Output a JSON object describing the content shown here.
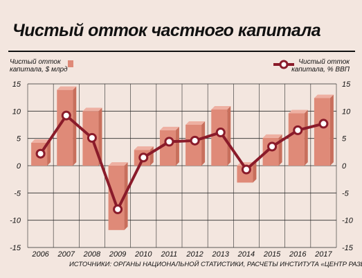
{
  "chart_data": {
    "type": "bar",
    "title": "Чистый отток частного капитала",
    "categories": [
      "2006",
      "2007",
      "2008",
      "2009",
      "2010",
      "2011",
      "2012",
      "2013",
      "2014",
      "2015",
      "2016",
      "2017"
    ],
    "series": [
      {
        "name": "Чистый отток капитала, $ млрд",
        "kind": "bar",
        "axis": "left",
        "color": "#df8a78",
        "values": [
          4.2,
          13.9,
          10.0,
          -11.8,
          2.9,
          6.5,
          7.5,
          10.3,
          -3.1,
          5.1,
          9.6,
          12.4
        ]
      },
      {
        "name": "Чистый отток капитала, % ВВП",
        "kind": "line",
        "axis": "right",
        "color": "#8a1b2a",
        "values": [
          2.2,
          9.2,
          5.1,
          -8.0,
          1.5,
          4.4,
          4.6,
          6.1,
          -0.7,
          3.5,
          6.5,
          7.7
        ]
      }
    ],
    "legend_left": {
      "line1": "Чистый отток",
      "line2": "капитала, $ млрд"
    },
    "legend_right": {
      "line1": "Чистый отток",
      "line2": "капитала, % ВВП"
    },
    "ylim": [
      -15,
      15
    ],
    "ylim_right": [
      -15,
      15
    ],
    "y_ticks": [
      "15",
      "10",
      "5",
      "0",
      "-5",
      "-10",
      "-15"
    ],
    "y_tick_values": [
      15,
      10,
      5,
      0,
      -5,
      -10,
      -15
    ],
    "grid": true,
    "source": "ИСТОЧНИКИ: ОРГАНЫ НАЦИОНАЛЬНОЙ СТАТИСТИКИ, РАСЧЕТЫ ИНСТИТУТА «ЦЕНТР РАЗВИТИЯ» НИУ ВШЭ",
    "colors": {
      "background": "#f3e6df",
      "grid": "#2a2a2a",
      "bar_front": "#df8a78",
      "bar_side": "#c86f5c",
      "bar_top": "#eeb0a2",
      "line": "#8a1b2a",
      "marker_fill": "#ffffff",
      "text": "#111111"
    }
  }
}
